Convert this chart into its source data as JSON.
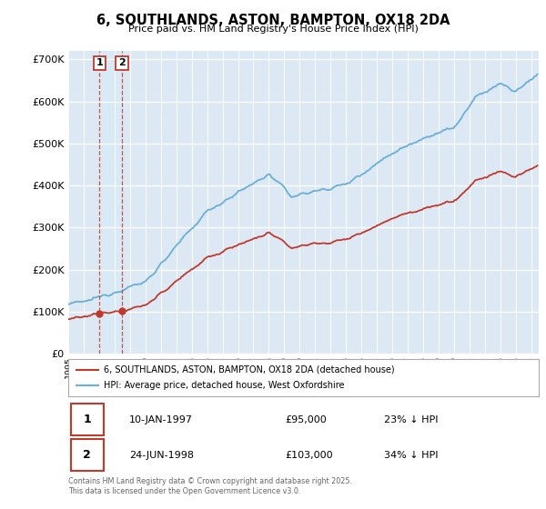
{
  "title": "6, SOUTHLANDS, ASTON, BAMPTON, OX18 2DA",
  "subtitle": "Price paid vs. HM Land Registry's House Price Index (HPI)",
  "legend_line1": "6, SOUTHLANDS, ASTON, BAMPTON, OX18 2DA (detached house)",
  "legend_line2": "HPI: Average price, detached house, West Oxfordshire",
  "sale1_date": "10-JAN-1997",
  "sale1_price": "£95,000",
  "sale1_hpi": "23% ↓ HPI",
  "sale1_year": 1997.03,
  "sale1_value": 95000,
  "sale2_date": "24-JUN-1998",
  "sale2_price": "£103,000",
  "sale2_hpi": "34% ↓ HPI",
  "sale2_year": 1998.48,
  "sale2_value": 103000,
  "footer": "Contains HM Land Registry data © Crown copyright and database right 2025.\nThis data is licensed under the Open Government Licence v3.0.",
  "hpi_color": "#6baed6",
  "sale_color": "#c0392b",
  "background_color": "#dce9f5",
  "shade_color": "#daeaf7",
  "plot_bg": "#ffffff",
  "grid_color": "#b0c4d8",
  "ylim_min": 0,
  "ylim_max": 720000,
  "xmin": 1995,
  "xmax": 2025.5
}
